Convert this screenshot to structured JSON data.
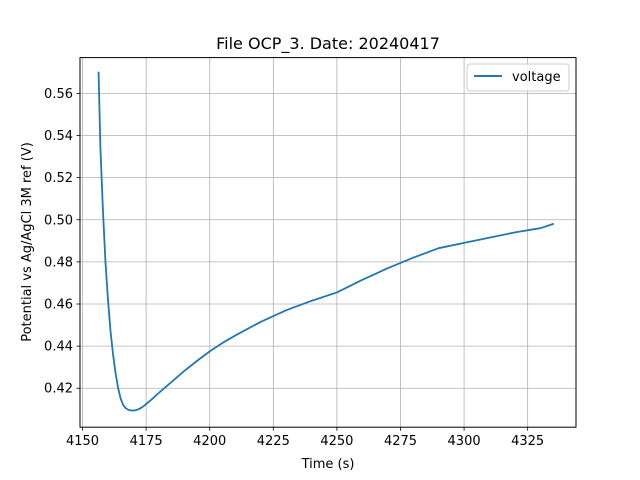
{
  "chart_data": {
    "type": "line",
    "title": "File OCP_3. Date: 20240417",
    "xlabel": "Time (s)",
    "ylabel": "Potential vs Ag/AgCl 3M ref (V)",
    "xlim": [
      4149,
      4344
    ],
    "ylim": [
      0.4015,
      0.577
    ],
    "xticks": [
      4150,
      4175,
      4200,
      4225,
      4250,
      4275,
      4300,
      4325
    ],
    "yticks": [
      0.42,
      0.44,
      0.46,
      0.48,
      0.5,
      0.52,
      0.54,
      0.56
    ],
    "xtick_labels": [
      "4150",
      "4175",
      "4200",
      "4225",
      "4250",
      "4275",
      "4300",
      "4325"
    ],
    "ytick_labels": [
      "0.42",
      "0.44",
      "0.46",
      "0.48",
      "0.50",
      "0.52",
      "0.54",
      "0.56"
    ],
    "grid": true,
    "legend_position": "top-right",
    "series": [
      {
        "name": "voltage",
        "color": "#1f77b4",
        "x": [
          4156.3,
          4157,
          4158,
          4159,
          4160,
          4161,
          4162,
          4163,
          4164,
          4165,
          4166,
          4167,
          4168,
          4169,
          4170,
          4171,
          4172,
          4173,
          4174,
          4175,
          4177,
          4180,
          4185,
          4190,
          4195,
          4200,
          4205,
          4210,
          4220,
          4230,
          4240,
          4250,
          4260,
          4270,
          4280,
          4290,
          4300,
          4310,
          4320,
          4330,
          4335
        ],
        "y": [
          0.57,
          0.535,
          0.505,
          0.48,
          0.462,
          0.447,
          0.436,
          0.427,
          0.42,
          0.415,
          0.412,
          0.4105,
          0.4098,
          0.4095,
          0.4094,
          0.4096,
          0.41,
          0.4107,
          0.4115,
          0.4125,
          0.4145,
          0.4178,
          0.423,
          0.4282,
          0.433,
          0.4375,
          0.4415,
          0.445,
          0.4515,
          0.457,
          0.4615,
          0.4655,
          0.4715,
          0.477,
          0.482,
          0.4865,
          0.489,
          0.4915,
          0.494,
          0.496,
          0.498
        ]
      }
    ]
  }
}
